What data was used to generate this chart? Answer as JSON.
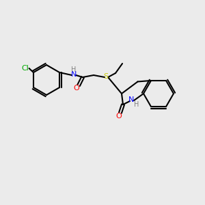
{
  "bg_color": "#EBEBEB",
  "bond_color": "#000000",
  "bond_lw": 1.5,
  "atom_colors": {
    "N": "#0000FF",
    "O": "#FF0000",
    "S": "#CCCC00",
    "Cl": "#00AA00",
    "H": "#808080"
  },
  "font_size": 7.5
}
